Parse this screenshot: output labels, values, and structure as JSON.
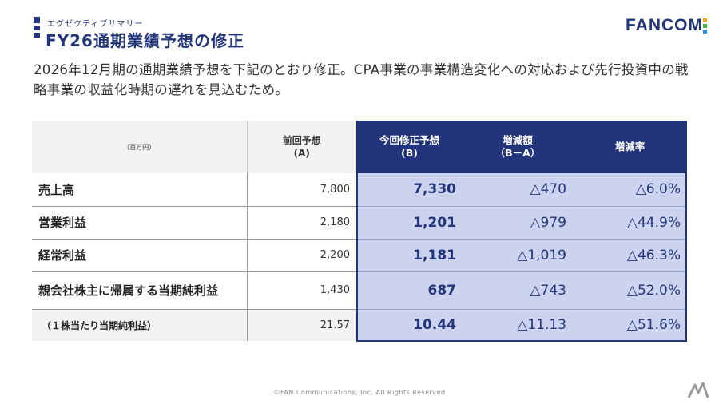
{
  "header": {
    "subtitle": "エグゼクティブサマリー",
    "title": "FY26通期業績予想の修正",
    "logo_text": "FANCOM",
    "logo_dot_colors": [
      "#f5a623",
      "#4caf50",
      "#2196f3"
    ]
  },
  "lead": "2026年12月期の通期業績予想を下記のとおり修正。CPA事業の事業構造変化への対応および先行投資中の戦略事業の収益化時期の遅れを見込むため。",
  "table": {
    "unit": "（百万円）",
    "headers": {
      "prev_line1": "前回予想",
      "prev_line2": "(A)",
      "new_line1": "今回修正予想",
      "new_line2": "(B)",
      "diff_line1": "増減額",
      "diff_line2": "（B－A）",
      "rate": "増減率"
    },
    "rows": [
      {
        "label": "売上高",
        "prev": "7,800",
        "new": "7,330",
        "diff": "△470",
        "rate": "△6.0%"
      },
      {
        "label": "営業利益",
        "prev": "2,180",
        "new": "1,201",
        "diff": "△979",
        "rate": "△44.9%"
      },
      {
        "label": "経常利益",
        "prev": "2,200",
        "new": "1,181",
        "diff": "△1,019",
        "rate": "△46.3%"
      },
      {
        "label": "親会社株主に帰属する当期純利益",
        "prev": "1,430",
        "new": "687",
        "diff": "△743",
        "rate": "△52.0%"
      },
      {
        "label": "（１株当たり当期純利益）",
        "prev": "21.57",
        "new": "10.44",
        "diff": "△11.13",
        "rate": "△51.6%"
      }
    ]
  },
  "footer": {
    "copyright": "©FAN Communications, Inc. All Rights Reserved"
  },
  "colors": {
    "brand_navy": "#23357a",
    "highlight_blue": "#ccd3ee"
  }
}
